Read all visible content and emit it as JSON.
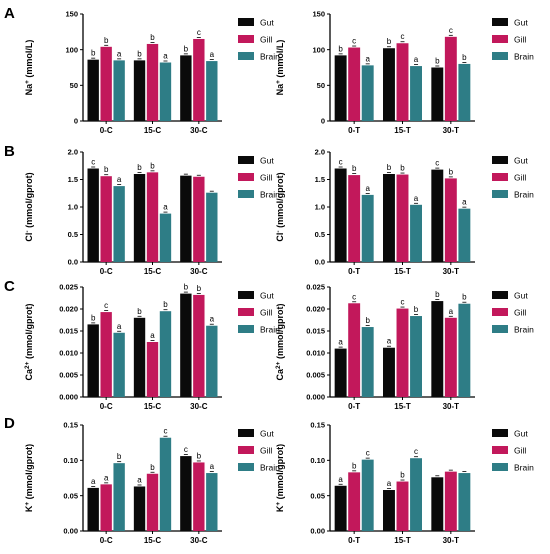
{
  "panel_letters": [
    "A",
    "B",
    "C",
    "D"
  ],
  "colors": {
    "Gut": "#0a0a0a",
    "Gill": "#c2185b",
    "Brain": "#2e7d86",
    "axis": "#000000"
  },
  "chart_data": [
    {
      "type": "bar",
      "row": 0,
      "side": "left",
      "ylabel": "Na+ (mmol/L)",
      "ylabel_parts": {
        "base": "Na",
        "sup": "+",
        "rest": " (mmol/L)"
      },
      "ylim": [
        0,
        150
      ],
      "yticks": [
        "0",
        "50",
        "100",
        "150"
      ],
      "categories": [
        "0-C",
        "15-C",
        "30-C"
      ],
      "series": [
        {
          "name": "Gut",
          "values": [
            86,
            85,
            92
          ],
          "letters": [
            "b",
            "b",
            "b"
          ]
        },
        {
          "name": "Gill",
          "values": [
            104,
            108,
            115
          ],
          "letters": [
            "b",
            "b",
            "c"
          ]
        },
        {
          "name": "Brain",
          "values": [
            85,
            82,
            84
          ],
          "letters": [
            "a",
            "a",
            "a"
          ]
        }
      ],
      "legend": [
        "Gut",
        "Gill",
        "Brain"
      ]
    },
    {
      "type": "bar",
      "row": 0,
      "side": "right",
      "ylabel": "Na+ (mmol/L)",
      "ylabel_parts": {
        "base": "Na",
        "sup": "+",
        "rest": " (mmol/L)"
      },
      "ylim": [
        0,
        150
      ],
      "yticks": [
        "0",
        "50",
        "100",
        "150"
      ],
      "categories": [
        "0-T",
        "15-T",
        "30-T"
      ],
      "series": [
        {
          "name": "Gut",
          "values": [
            92,
            102,
            75
          ],
          "letters": [
            "b",
            "b",
            "b"
          ]
        },
        {
          "name": "Gill",
          "values": [
            103,
            109,
            118
          ],
          "letters": [
            "c",
            "c",
            "c"
          ]
        },
        {
          "name": "Brain",
          "values": [
            78,
            77,
            80
          ],
          "letters": [
            "a",
            "a",
            "b"
          ]
        }
      ],
      "legend": [
        "Gut",
        "Gill",
        "Brain"
      ]
    },
    {
      "type": "bar",
      "row": 1,
      "side": "left",
      "ylabel": "Cl- (mmol/gprot)",
      "ylabel_parts": {
        "base": "Cl",
        "sup": "-",
        "rest": " (mmol/gprot)"
      },
      "ylim": [
        0,
        2.0
      ],
      "yticks": [
        "0.0",
        "0.5",
        "1.0",
        "1.5",
        "2.0"
      ],
      "categories": [
        "0-C",
        "15-C",
        "30-C"
      ],
      "series": [
        {
          "name": "Gut",
          "values": [
            1.7,
            1.6,
            1.57
          ],
          "letters": [
            "c",
            "b",
            ""
          ]
        },
        {
          "name": "Gill",
          "values": [
            1.56,
            1.63,
            1.55
          ],
          "letters": [
            "b",
            "b",
            ""
          ]
        },
        {
          "name": "Brain",
          "values": [
            1.38,
            0.88,
            1.26
          ],
          "letters": [
            "a",
            "a",
            ""
          ]
        }
      ],
      "legend": [
        "Gut",
        "Gill",
        "Brain"
      ]
    },
    {
      "type": "bar",
      "row": 1,
      "side": "right",
      "ylabel": "Cl- (mmol/gprot)",
      "ylabel_parts": {
        "base": "Cl",
        "sup": "-",
        "rest": " (mmol/gprot)"
      },
      "ylim": [
        0,
        2.0
      ],
      "yticks": [
        "0.0",
        "0.5",
        "1.0",
        "1.5",
        "2.0"
      ],
      "categories": [
        "0-T",
        "15-T",
        "30-T"
      ],
      "series": [
        {
          "name": "Gut",
          "values": [
            1.7,
            1.6,
            1.68
          ],
          "letters": [
            "c",
            "b",
            "c"
          ]
        },
        {
          "name": "Gill",
          "values": [
            1.58,
            1.59,
            1.52
          ],
          "letters": [
            "b",
            "b",
            "b"
          ]
        },
        {
          "name": "Brain",
          "values": [
            1.22,
            1.04,
            0.97
          ],
          "letters": [
            "a",
            "a",
            "a"
          ]
        }
      ],
      "legend": [
        "Gut",
        "Gill",
        "Brain"
      ]
    },
    {
      "type": "bar",
      "row": 2,
      "side": "left",
      "ylabel": "Ca2+ (mmol/gprot)",
      "ylabel_parts": {
        "base": "Ca",
        "sup": "2+",
        "rest": " (mmol/gprot)"
      },
      "ylim": [
        0,
        0.025
      ],
      "yticks": [
        "0.000",
        "0.005",
        "0.010",
        "0.015",
        "0.020",
        "0.025"
      ],
      "categories": [
        "0-C",
        "15-C",
        "30-C"
      ],
      "series": [
        {
          "name": "Gut",
          "values": [
            0.0165,
            0.018,
            0.0235
          ],
          "letters": [
            "b",
            "b",
            "b"
          ]
        },
        {
          "name": "Gill",
          "values": [
            0.0193,
            0.0125,
            0.0232
          ],
          "letters": [
            "c",
            "a",
            "b"
          ]
        },
        {
          "name": "Brain",
          "values": [
            0.0146,
            0.0195,
            0.0162
          ],
          "letters": [
            "a",
            "b",
            "a"
          ]
        }
      ],
      "legend": [
        "Gut",
        "Gill",
        "Brain"
      ]
    },
    {
      "type": "bar",
      "row": 2,
      "side": "right",
      "ylabel": "Ca2+ (mmol/gprot)",
      "ylabel_parts": {
        "base": "Ca",
        "sup": "2+",
        "rest": " (mmol/gprot)"
      },
      "ylim": [
        0,
        0.025
      ],
      "yticks": [
        "0.000",
        "0.005",
        "0.010",
        "0.015",
        "0.020",
        "0.025"
      ],
      "categories": [
        "0-T",
        "15-T",
        "30-T"
      ],
      "series": [
        {
          "name": "Gut",
          "values": [
            0.011,
            0.0112,
            0.0218
          ],
          "letters": [
            "a",
            "a",
            "b"
          ]
        },
        {
          "name": "Gill",
          "values": [
            0.0213,
            0.0201,
            0.018
          ],
          "letters": [
            "c",
            "c",
            "a"
          ]
        },
        {
          "name": "Brain",
          "values": [
            0.0159,
            0.0184,
            0.0212
          ],
          "letters": [
            "b",
            "b",
            "b"
          ]
        }
      ],
      "legend": [
        "Gut",
        "Gill",
        "Brain"
      ]
    },
    {
      "type": "bar",
      "row": 3,
      "side": "left",
      "ylabel": "K+ (mmol/gprot)",
      "ylabel_parts": {
        "base": "K",
        "sup": "+",
        "rest": " (mmol/gprot)"
      },
      "ylim": [
        0,
        0.15
      ],
      "yticks": [
        "0.00",
        "0.05",
        "0.10",
        "0.15"
      ],
      "categories": [
        "0-C",
        "15-C",
        "30-C"
      ],
      "series": [
        {
          "name": "Gut",
          "values": [
            0.061,
            0.063,
            0.106
          ],
          "letters": [
            "a",
            "a",
            "c"
          ]
        },
        {
          "name": "Gill",
          "values": [
            0.066,
            0.081,
            0.097
          ],
          "letters": [
            "a",
            "b",
            "b"
          ]
        },
        {
          "name": "Brain",
          "values": [
            0.096,
            0.132,
            0.082
          ],
          "letters": [
            "b",
            "c",
            "a"
          ]
        }
      ],
      "legend": [
        "Gut",
        "Gill",
        "Brain"
      ]
    },
    {
      "type": "bar",
      "row": 3,
      "side": "right",
      "ylabel": "K+ (mmol/gprot)",
      "ylabel_parts": {
        "base": "K",
        "sup": "+",
        "rest": " (mmol/gprot)"
      },
      "ylim": [
        0,
        0.15
      ],
      "yticks": [
        "0.00",
        "0.05",
        "0.10",
        "0.15"
      ],
      "categories": [
        "0-T",
        "15-T",
        "30-T"
      ],
      "series": [
        {
          "name": "Gut",
          "values": [
            0.064,
            0.058,
            0.076
          ],
          "letters": [
            "a",
            "a",
            ""
          ]
        },
        {
          "name": "Gill",
          "values": [
            0.083,
            0.07,
            0.084
          ],
          "letters": [
            "b",
            "b",
            ""
          ]
        },
        {
          "name": "Brain",
          "values": [
            0.101,
            0.103,
            0.082
          ],
          "letters": [
            "c",
            "c",
            ""
          ]
        }
      ],
      "legend": [
        "Gut",
        "Gill",
        "Brain"
      ]
    }
  ]
}
